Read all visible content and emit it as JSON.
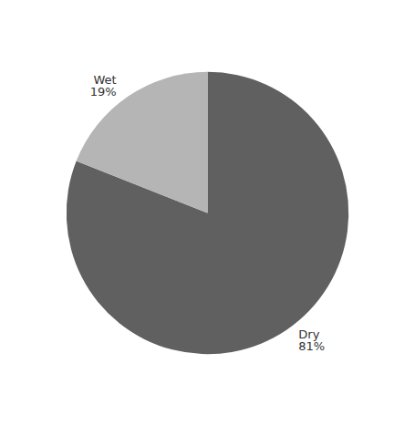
{
  "chart_data": {
    "type": "pie",
    "categories": [
      "Dry",
      "Wet"
    ],
    "values": [
      81,
      19
    ],
    "value_labels": [
      "81%",
      "19%"
    ],
    "colors": [
      "#606060",
      "#b5b5b5"
    ]
  }
}
